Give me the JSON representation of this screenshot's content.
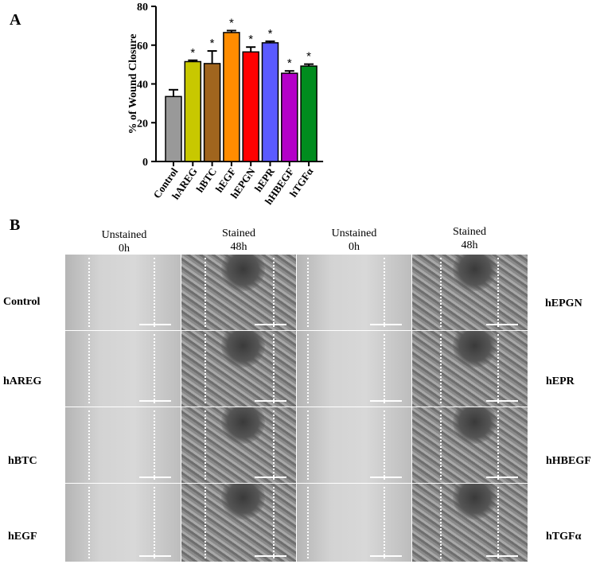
{
  "panel_a_label": "A",
  "panel_b_label": "B",
  "chart_data": {
    "type": "bar",
    "ylabel": "% of Wound Closure",
    "xlabel": "",
    "ylim": [
      0,
      80
    ],
    "yticks": [
      0,
      20,
      40,
      60,
      80
    ],
    "categories": [
      "Control",
      "hAREG",
      "hBTC",
      "hEGF",
      "hEPGN",
      "hEPR",
      "hHBEGF",
      "hTGFα"
    ],
    "values": [
      33.5,
      51.5,
      50.5,
      66.5,
      56.5,
      61.2,
      45.5,
      49.2
    ],
    "errors": [
      3.5,
      0.7,
      6.5,
      1.0,
      2.5,
      0.8,
      1.2,
      1.0
    ],
    "significance": [
      "",
      "*",
      "*",
      "*",
      "*",
      "*",
      "*",
      "*"
    ],
    "colors": [
      "#999999",
      "#c8c800",
      "#a0651e",
      "#ff8c00",
      "#ff0000",
      "#5a5aff",
      "#b400c8",
      "#008c1e"
    ],
    "grid": false,
    "legend": "none"
  },
  "panel_b": {
    "column_headers": [
      {
        "line1": "Unstained",
        "line2": "0h"
      },
      {
        "line1": "Stained",
        "line2": "48h"
      },
      {
        "line1": "Unstained",
        "line2": "0h"
      },
      {
        "line1": "Stained",
        "line2": "48h"
      }
    ],
    "left_rows": [
      "Control",
      "hAREG",
      "hBTC",
      "hEGF"
    ],
    "right_rows": [
      "hEPGN",
      "hEPR",
      "hHBEGF",
      "hTGFα"
    ]
  }
}
